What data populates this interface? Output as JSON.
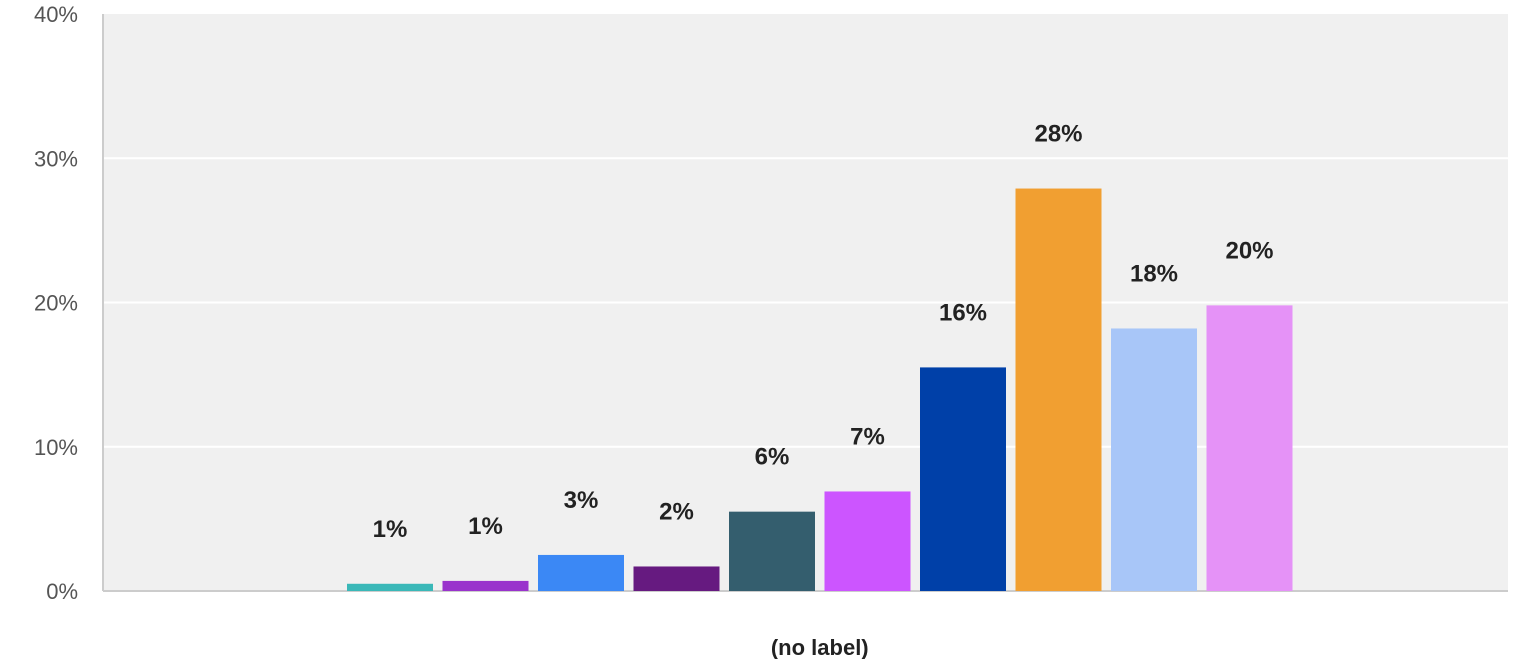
{
  "chart_data": {
    "type": "bar",
    "categories": [
      "(no label)"
    ],
    "series": [
      {
        "values": [
          0.5
        ],
        "color": "#3ab8b8",
        "label": "1%"
      },
      {
        "values": [
          0.7
        ],
        "color": "#9933cc",
        "label": "1%"
      },
      {
        "values": [
          2.5
        ],
        "color": "#3b88f5",
        "label": "3%"
      },
      {
        "values": [
          1.7
        ],
        "color": "#661a80",
        "label": "2%"
      },
      {
        "values": [
          5.5
        ],
        "color": "#345e6e",
        "label": "6%"
      },
      {
        "values": [
          6.9
        ],
        "color": "#cc55ff",
        "label": "7%"
      },
      {
        "values": [
          15.5
        ],
        "color": "#0040a8",
        "label": "16%"
      },
      {
        "values": [
          27.9
        ],
        "color": "#f19f31",
        "label": "28%"
      },
      {
        "values": [
          18.2
        ],
        "color": "#a8c6f8",
        "label": "18%"
      },
      {
        "values": [
          19.8
        ],
        "color": "#e592f7",
        "label": "20%"
      }
    ],
    "y_ticks": [
      "0%",
      "10%",
      "20%",
      "30%",
      "40%"
    ],
    "y_tick_values": [
      0,
      10,
      20,
      30,
      40
    ],
    "ylim": [
      0,
      40
    ],
    "grid": true,
    "legend": "none",
    "colors": {
      "plot_background": "#f0f0f0",
      "gridline": "#ffffff",
      "axis": "#cccccc"
    }
  }
}
